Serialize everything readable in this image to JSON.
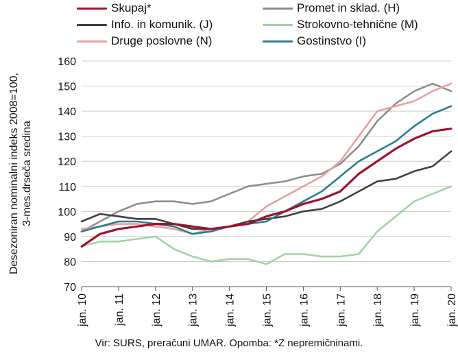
{
  "chart_data": {
    "type": "line",
    "title": "",
    "ylabel": [
      "Desezoniran nominalni indeks 2008=100,",
      "3-mes.drseča sredina"
    ],
    "xlabel": "",
    "ylim": [
      70,
      160
    ],
    "yticks": [
      70,
      80,
      90,
      100,
      110,
      120,
      130,
      140,
      150,
      160
    ],
    "xlim": [
      2010,
      2020
    ],
    "xticks": [
      2010,
      2011,
      2012,
      2013,
      2014,
      2015,
      2016,
      2017,
      2018,
      2019,
      2020
    ],
    "xtick_labels": [
      "jan. 10",
      "jan. 11",
      "jan. 12",
      "jan. 13",
      "jan. 14",
      "jan. 15",
      "jan. 16",
      "jan. 17",
      "jan. 18",
      "jan. 19",
      "jan. 20"
    ],
    "grid": "horizontal",
    "legend_position": "top",
    "series": [
      {
        "name": "Skupaj*",
        "color": "#a0112b",
        "x": [
          2010,
          2010.5,
          2011,
          2011.5,
          2012,
          2012.5,
          2013,
          2013.5,
          2014,
          2014.5,
          2015,
          2015.5,
          2016,
          2016.5,
          2017,
          2017.5,
          2018,
          2018.5,
          2019,
          2019.5,
          2020
        ],
        "values": [
          86,
          91,
          93,
          94,
          95,
          95,
          94,
          93,
          94,
          95,
          98,
          100,
          103,
          105,
          108,
          115,
          120,
          125,
          129,
          132,
          133
        ]
      },
      {
        "name": "Promet in sklad. (H)",
        "color": "#8e8e8e",
        "x": [
          2010,
          2010.5,
          2011,
          2011.5,
          2012,
          2012.5,
          2013,
          2013.5,
          2014,
          2014.5,
          2015,
          2015.5,
          2016,
          2016.5,
          2017,
          2017.5,
          2018,
          2018.5,
          2019,
          2019.5,
          2020
        ],
        "values": [
          92,
          96,
          100,
          103,
          104,
          104,
          103,
          104,
          107,
          110,
          111,
          112,
          114,
          115,
          119,
          126,
          136,
          143,
          148,
          151,
          148
        ]
      },
      {
        "name": "Info. in komunik. (J)",
        "color": "#404040",
        "x": [
          2010,
          2010.5,
          2011,
          2011.5,
          2012,
          2012.5,
          2013,
          2013.5,
          2014,
          2014.5,
          2015,
          2015.5,
          2016,
          2016.5,
          2017,
          2017.5,
          2018,
          2018.5,
          2019,
          2019.5,
          2020
        ],
        "values": [
          96,
          99,
          98,
          97,
          97,
          95,
          93,
          93,
          94,
          96,
          97,
          98,
          100,
          101,
          104,
          108,
          112,
          113,
          116,
          118,
          124
        ]
      },
      {
        "name": "Strokovno-tehnične (M)",
        "color": "#9fd4a3",
        "x": [
          2010,
          2010.5,
          2011,
          2011.5,
          2012,
          2012.5,
          2013,
          2013.5,
          2014,
          2014.5,
          2015,
          2015.5,
          2016,
          2016.5,
          2017,
          2017.5,
          2018,
          2018.5,
          2019,
          2019.5,
          2020
        ],
        "values": [
          86,
          88,
          88,
          89,
          90,
          85,
          82,
          80,
          81,
          81,
          79,
          83,
          83,
          82,
          82,
          83,
          92,
          98,
          104,
          107,
          110
        ]
      },
      {
        "name": "Druge poslovne (N)",
        "color": "#e8a0a0",
        "x": [
          2010,
          2010.5,
          2011,
          2011.5,
          2012,
          2012.5,
          2013,
          2013.5,
          2014,
          2014.5,
          2015,
          2015.5,
          2016,
          2016.5,
          2017,
          2017.5,
          2018,
          2018.5,
          2019,
          2019.5,
          2020
        ],
        "values": [
          93,
          94,
          95,
          95,
          94,
          93,
          91,
          93,
          94,
          96,
          102,
          106,
          110,
          114,
          120,
          130,
          140,
          142,
          144,
          148,
          151
        ]
      },
      {
        "name": "Gostinstvo (I)",
        "color": "#2b7d8e",
        "x": [
          2010,
          2010.5,
          2011,
          2011.5,
          2012,
          2012.5,
          2013,
          2013.5,
          2014,
          2014.5,
          2015,
          2015.5,
          2016,
          2016.5,
          2017,
          2017.5,
          2018,
          2018.5,
          2019,
          2019.5,
          2020
        ],
        "values": [
          92,
          94,
          96,
          96,
          95,
          94,
          91,
          92,
          94,
          95,
          96,
          100,
          104,
          108,
          114,
          120,
          124,
          128,
          134,
          139,
          142
        ]
      }
    ]
  },
  "source_note": "Vir: SURS, preračuni UMAR. Opomba: *Z nepremičninami."
}
